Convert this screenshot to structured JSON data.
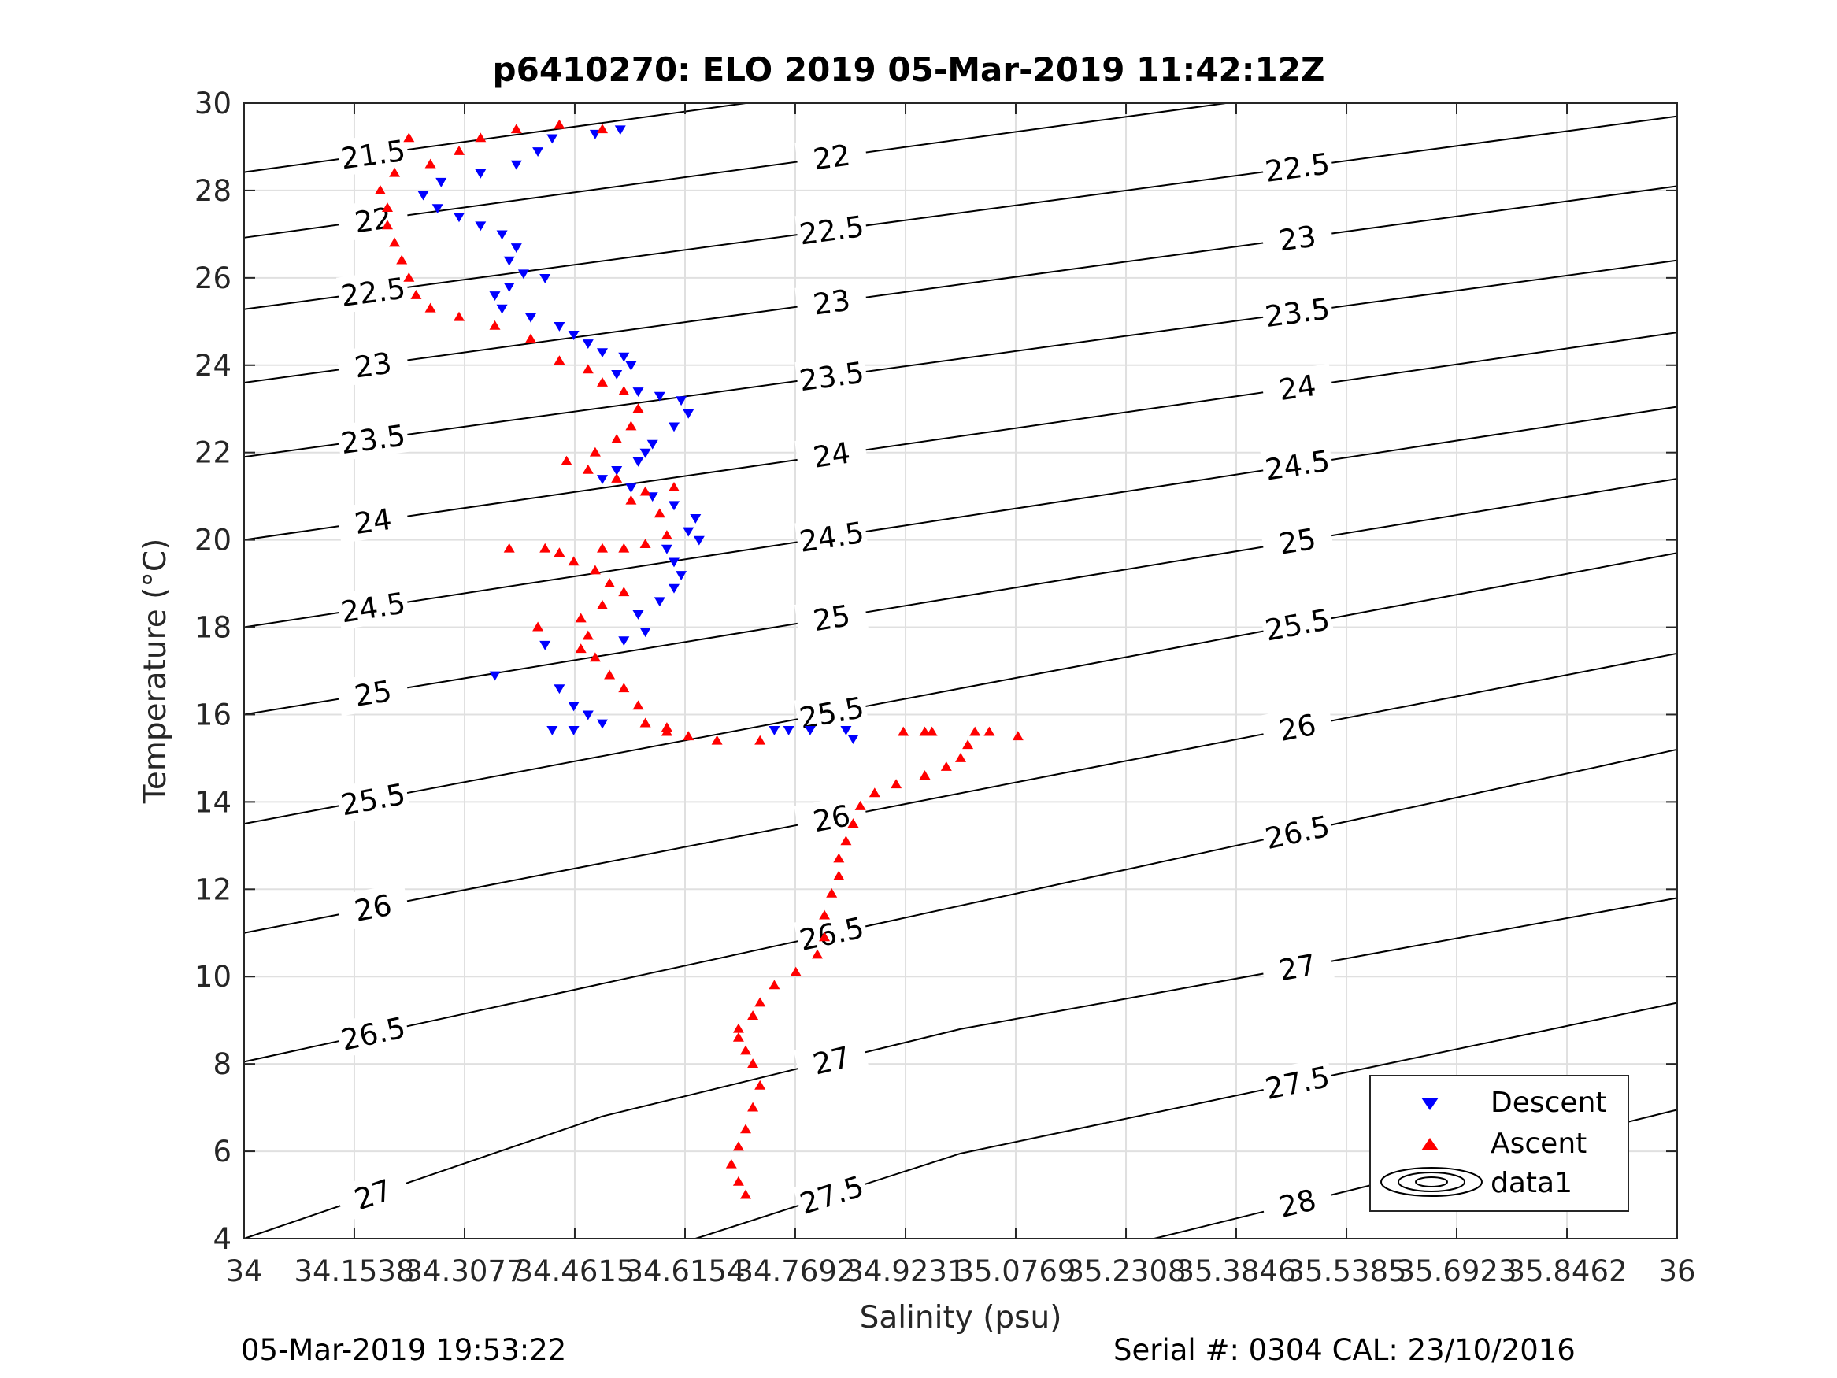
{
  "title": "p6410270: ELO 2019 05-Mar-2019 11:42:12Z",
  "footer": {
    "left": "05-Mar-2019 19:53:22",
    "right": "Serial #: 0304  CAL: 23/10/2016"
  },
  "colors": {
    "descent": "#0000ff",
    "ascent": "#ff0000",
    "grid": "#e0e0e0",
    "contour": "#000000"
  },
  "chart_data": {
    "type": "scatter",
    "title": "p6410270: ELO 2019 05-Mar-2019 11:42:12Z",
    "xlabel": "Salinity (psu)",
    "ylabel": "Temperature (°C)",
    "xlim": [
      34,
      36
    ],
    "ylim": [
      4,
      30
    ],
    "grid": true,
    "legend_position": "bottom-right",
    "x_ticks": [
      34,
      34.1538,
      34.3077,
      34.4615,
      34.6154,
      34.7692,
      34.9231,
      35.0769,
      35.2308,
      35.3846,
      35.5385,
      35.6923,
      35.8462,
      36
    ],
    "x_tick_labels": [
      "34",
      "34.1538",
      "34.3077",
      "34.4615",
      "34.6154",
      "34.7692",
      "34.9231",
      "35.0769",
      "35.2308",
      "35.3846",
      "35.5385",
      "35.6923",
      "35.8462",
      "36"
    ],
    "y_ticks": [
      4,
      6,
      8,
      10,
      12,
      14,
      16,
      18,
      20,
      22,
      24,
      26,
      28,
      30
    ],
    "y_tick_labels": [
      "4",
      "6",
      "8",
      "10",
      "12",
      "14",
      "16",
      "18",
      "20",
      "22",
      "24",
      "26",
      "28",
      "30"
    ],
    "legend": [
      "Descent",
      "Ascent",
      "data1"
    ],
    "series": [
      {
        "name": "Descent",
        "marker": "triangle-down",
        "color": "#0000ff",
        "points": [
          [
            34.525,
            29.4
          ],
          [
            34.49,
            29.3
          ],
          [
            34.43,
            29.2
          ],
          [
            34.41,
            28.9
          ],
          [
            34.38,
            28.6
          ],
          [
            34.33,
            28.4
          ],
          [
            34.275,
            28.2
          ],
          [
            34.25,
            27.9
          ],
          [
            34.27,
            27.6
          ],
          [
            34.3,
            27.4
          ],
          [
            34.33,
            27.2
          ],
          [
            34.36,
            27.0
          ],
          [
            34.38,
            26.7
          ],
          [
            34.37,
            26.4
          ],
          [
            34.39,
            26.1
          ],
          [
            34.42,
            26.0
          ],
          [
            34.37,
            25.8
          ],
          [
            34.35,
            25.6
          ],
          [
            34.36,
            25.3
          ],
          [
            34.4,
            25.1
          ],
          [
            34.44,
            24.9
          ],
          [
            34.46,
            24.7
          ],
          [
            34.48,
            24.5
          ],
          [
            34.5,
            24.3
          ],
          [
            34.53,
            24.2
          ],
          [
            34.54,
            24.0
          ],
          [
            34.52,
            23.8
          ],
          [
            34.55,
            23.4
          ],
          [
            34.58,
            23.3
          ],
          [
            34.61,
            23.2
          ],
          [
            34.62,
            22.9
          ],
          [
            34.6,
            22.6
          ],
          [
            34.57,
            22.2
          ],
          [
            34.56,
            22.0
          ],
          [
            34.55,
            21.8
          ],
          [
            34.52,
            21.6
          ],
          [
            34.5,
            21.4
          ],
          [
            34.54,
            21.2
          ],
          [
            34.57,
            21.0
          ],
          [
            34.6,
            20.8
          ],
          [
            34.63,
            20.5
          ],
          [
            34.62,
            20.2
          ],
          [
            34.635,
            20.0
          ],
          [
            34.59,
            19.8
          ],
          [
            34.6,
            19.5
          ],
          [
            34.61,
            19.2
          ],
          [
            34.6,
            18.9
          ],
          [
            34.58,
            18.6
          ],
          [
            34.55,
            18.3
          ],
          [
            34.56,
            17.9
          ],
          [
            34.53,
            17.7
          ],
          [
            34.42,
            17.6
          ],
          [
            34.35,
            16.9
          ],
          [
            34.44,
            16.6
          ],
          [
            34.46,
            16.2
          ],
          [
            34.48,
            16.0
          ],
          [
            34.5,
            15.8
          ],
          [
            34.43,
            15.65
          ],
          [
            34.46,
            15.65
          ],
          [
            34.74,
            15.65
          ],
          [
            34.76,
            15.65
          ],
          [
            34.79,
            15.65
          ],
          [
            34.84,
            15.65
          ],
          [
            34.85,
            15.45
          ]
        ]
      },
      {
        "name": "Ascent",
        "marker": "triangle-up",
        "color": "#ff0000",
        "points": [
          [
            34.7,
            5.0
          ],
          [
            34.69,
            5.3
          ],
          [
            34.68,
            5.7
          ],
          [
            34.69,
            6.1
          ],
          [
            34.7,
            6.5
          ],
          [
            34.71,
            7.0
          ],
          [
            34.72,
            7.5
          ],
          [
            34.71,
            8.0
          ],
          [
            34.7,
            8.3
          ],
          [
            34.69,
            8.6
          ],
          [
            34.69,
            8.8
          ],
          [
            34.71,
            9.1
          ],
          [
            34.72,
            9.4
          ],
          [
            34.74,
            9.8
          ],
          [
            34.77,
            10.1
          ],
          [
            34.8,
            10.5
          ],
          [
            34.81,
            10.9
          ],
          [
            34.81,
            11.4
          ],
          [
            34.82,
            11.9
          ],
          [
            34.83,
            12.3
          ],
          [
            34.83,
            12.7
          ],
          [
            34.84,
            13.1
          ],
          [
            34.85,
            13.5
          ],
          [
            34.86,
            13.9
          ],
          [
            34.88,
            14.2
          ],
          [
            34.91,
            14.4
          ],
          [
            34.95,
            14.6
          ],
          [
            34.98,
            14.8
          ],
          [
            35.0,
            15.0
          ],
          [
            35.01,
            15.3
          ],
          [
            35.08,
            15.5
          ],
          [
            35.04,
            15.6
          ],
          [
            34.95,
            15.6
          ],
          [
            34.72,
            15.4
          ],
          [
            34.66,
            15.4
          ],
          [
            34.62,
            15.5
          ],
          [
            34.59,
            15.6
          ],
          [
            34.56,
            15.8
          ],
          [
            34.55,
            16.2
          ],
          [
            34.53,
            16.6
          ],
          [
            34.51,
            16.9
          ],
          [
            34.49,
            17.3
          ],
          [
            34.47,
            17.5
          ],
          [
            34.48,
            17.8
          ],
          [
            34.47,
            18.2
          ],
          [
            34.5,
            18.5
          ],
          [
            34.53,
            18.8
          ],
          [
            34.51,
            19.0
          ],
          [
            34.49,
            19.3
          ],
          [
            34.46,
            19.5
          ],
          [
            34.5,
            19.8
          ],
          [
            34.53,
            19.8
          ],
          [
            34.56,
            19.9
          ],
          [
            34.59,
            20.1
          ],
          [
            34.58,
            20.6
          ],
          [
            34.54,
            20.9
          ],
          [
            34.56,
            21.1
          ],
          [
            34.6,
            21.2
          ],
          [
            34.52,
            21.4
          ],
          [
            34.48,
            21.6
          ],
          [
            34.45,
            21.8
          ],
          [
            34.49,
            22.0
          ],
          [
            34.52,
            22.3
          ],
          [
            34.54,
            22.6
          ],
          [
            34.55,
            23.0
          ],
          [
            34.53,
            23.4
          ],
          [
            34.5,
            23.6
          ],
          [
            34.48,
            23.9
          ],
          [
            34.44,
            24.1
          ],
          [
            34.4,
            24.6
          ],
          [
            34.35,
            24.9
          ],
          [
            34.3,
            25.1
          ],
          [
            34.26,
            25.3
          ],
          [
            34.24,
            25.6
          ],
          [
            34.23,
            26.0
          ],
          [
            34.22,
            26.4
          ],
          [
            34.21,
            26.8
          ],
          [
            34.2,
            27.2
          ],
          [
            34.2,
            27.6
          ],
          [
            34.19,
            28.0
          ],
          [
            34.21,
            28.4
          ],
          [
            34.26,
            28.6
          ],
          [
            34.3,
            28.9
          ],
          [
            34.33,
            29.2
          ],
          [
            34.38,
            29.4
          ],
          [
            34.44,
            29.5
          ],
          [
            34.5,
            29.4
          ],
          [
            34.23,
            29.2
          ],
          [
            34.37,
            19.8
          ],
          [
            34.42,
            19.8
          ],
          [
            34.44,
            19.7
          ],
          [
            34.41,
            18.0
          ],
          [
            34.59,
            15.7
          ],
          [
            34.92,
            15.6
          ],
          [
            34.96,
            15.6
          ],
          [
            35.02,
            15.6
          ]
        ]
      }
    ],
    "sigma_theta_contours": [
      {
        "label": "21.5",
        "points": [
          [
            34.0,
            28.42
          ],
          [
            34.7,
            30.0
          ]
        ]
      },
      {
        "label": "22",
        "points": [
          [
            34.0,
            26.92
          ],
          [
            35.2,
            29.62
          ],
          [
            35.37,
            30.0
          ]
        ]
      },
      {
        "label": "22.5",
        "points": [
          [
            34.0,
            25.28
          ],
          [
            36.0,
            29.7
          ]
        ]
      },
      {
        "label": "23",
        "points": [
          [
            34.0,
            23.6
          ],
          [
            36.0,
            28.1
          ]
        ]
      },
      {
        "label": "23.5",
        "points": [
          [
            34.0,
            21.9
          ],
          [
            36.0,
            26.4
          ]
        ]
      },
      {
        "label": "24",
        "points": [
          [
            34.0,
            20.0
          ],
          [
            36.0,
            24.75
          ]
        ]
      },
      {
        "label": "24.5",
        "points": [
          [
            34.0,
            18.0
          ],
          [
            36.0,
            23.05
          ]
        ]
      },
      {
        "label": "25",
        "points": [
          [
            34.0,
            16.0
          ],
          [
            36.0,
            21.4
          ]
        ]
      },
      {
        "label": "25.5",
        "points": [
          [
            34.0,
            13.5
          ],
          [
            36.0,
            19.7
          ]
        ]
      },
      {
        "label": "26",
        "points": [
          [
            34.0,
            11.0
          ],
          [
            36.0,
            17.4
          ]
        ]
      },
      {
        "label": "26.5",
        "points": [
          [
            34.0,
            8.05
          ],
          [
            36.0,
            15.2
          ]
        ]
      },
      {
        "label": "27",
        "points": [
          [
            34.0,
            4.0
          ],
          [
            34.5,
            6.8
          ],
          [
            35.0,
            8.8
          ],
          [
            36.0,
            11.8
          ]
        ]
      },
      {
        "label": "27.5",
        "points": [
          [
            34.63,
            4.0
          ],
          [
            35.0,
            5.95
          ],
          [
            36.0,
            9.4
          ]
        ]
      },
      {
        "label": "28",
        "points": [
          [
            35.27,
            4.0
          ],
          [
            36.0,
            6.95
          ]
        ]
      }
    ]
  }
}
